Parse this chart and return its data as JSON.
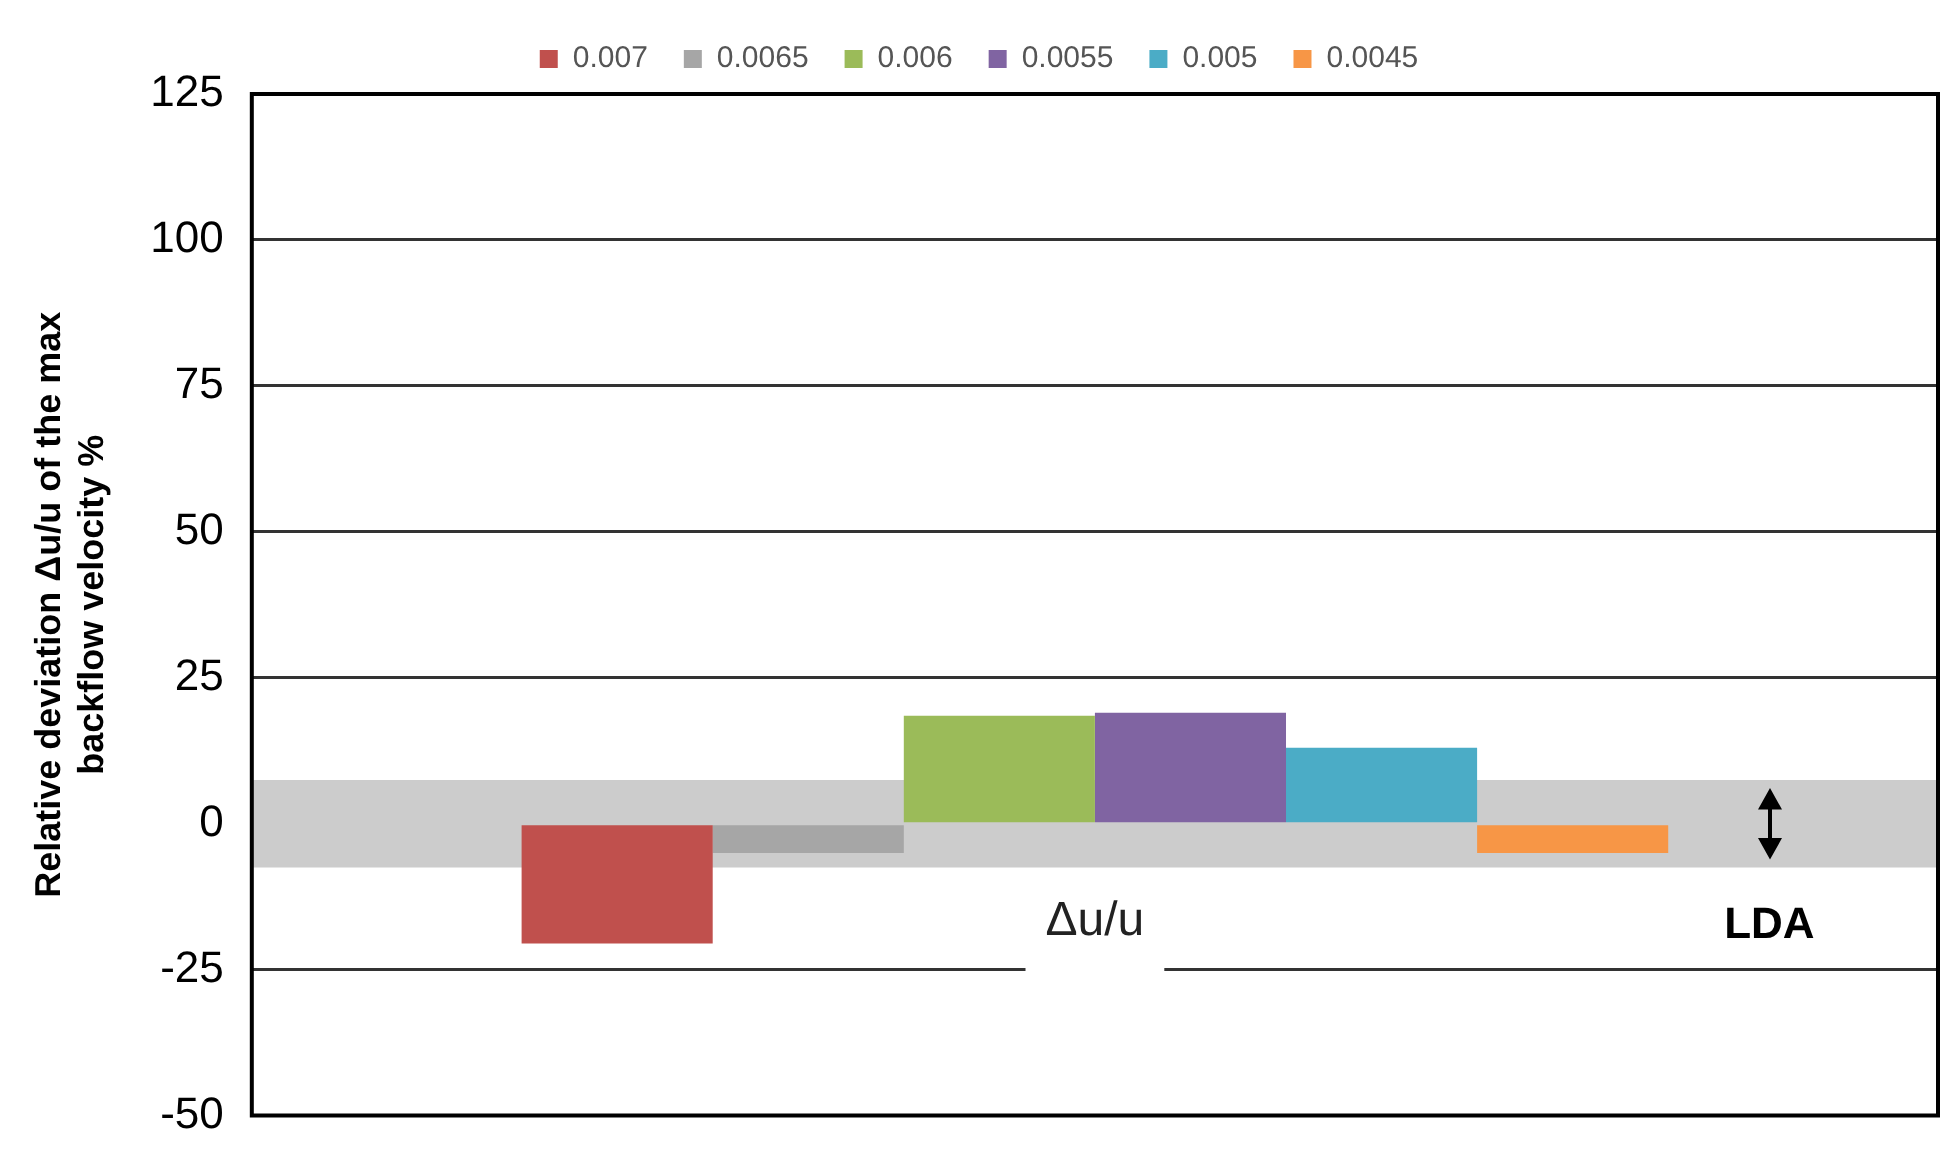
{
  "chart_data": {
    "type": "bar",
    "ylabel": "Relative deviation Δu/u of the max\nbackflow velocity %",
    "categories": [
      null
    ],
    "series": [
      {
        "name": "0.007",
        "color": "#c0504d",
        "values": [
          -20.5
        ]
      },
      {
        "name": "0.0065",
        "color": "#a6a6a6",
        "values": [
          -5
        ]
      },
      {
        "name": "0.006",
        "color": "#9bbb59",
        "values": [
          18.5
        ]
      },
      {
        "name": "0.0055",
        "color": "#8064a2",
        "values": [
          19
        ]
      },
      {
        "name": "0.005",
        "color": "#4bacc6",
        "values": [
          13
        ]
      },
      {
        "name": "0.0045",
        "color": "#f79646",
        "values": [
          -5
        ]
      }
    ],
    "ylim": [
      -50,
      125
    ],
    "yticks": [
      -50,
      -25,
      0,
      25,
      50,
      75,
      100,
      125
    ],
    "grid": "y",
    "legend": "top",
    "bands": [
      {
        "axis": "y",
        "from": -7.5,
        "to": 7.5,
        "label": "LDA",
        "color": "#cccccc"
      }
    ],
    "annotations": [
      "Δu/u"
    ]
  }
}
